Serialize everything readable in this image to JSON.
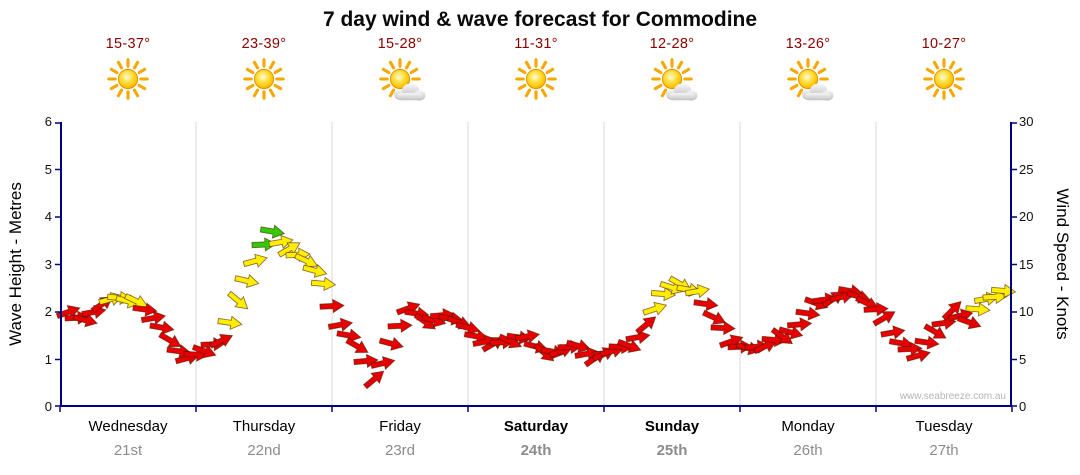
{
  "title": "7 day wind & wave forecast for Commodine",
  "watermark": "www.seabreeze.com.au",
  "colors": {
    "axis": "#000080",
    "grid": "#d8d8d8",
    "temp_text": "#8b0000",
    "date_text": "#8c8c8c"
  },
  "axes": {
    "left": {
      "label": "Wave Height - Metres",
      "ticks": [
        "0",
        "1",
        "2",
        "3",
        "4",
        "5",
        "6"
      ]
    },
    "right": {
      "label": "Wind Speed - Knots",
      "ticks": [
        "0",
        "5",
        "10",
        "15",
        "20",
        "25",
        "30"
      ]
    }
  },
  "days": [
    {
      "name": "Wednesday",
      "date": "21st",
      "temp": "15-37°",
      "icon": "sunny",
      "bold": false
    },
    {
      "name": "Thursday",
      "date": "22nd",
      "temp": "23-39°",
      "icon": "sunny",
      "bold": false
    },
    {
      "name": "Friday",
      "date": "23rd",
      "temp": "15-28°",
      "icon": "partly-cloudy",
      "bold": false
    },
    {
      "name": "Saturday",
      "date": "24th",
      "temp": "11-31°",
      "icon": "sunny",
      "bold": true
    },
    {
      "name": "Sunday",
      "date": "25th",
      "temp": "12-28°",
      "icon": "partly-cloudy",
      "bold": true
    },
    {
      "name": "Monday",
      "date": "26th",
      "temp": "13-26°",
      "icon": "partly-cloudy",
      "bold": false
    },
    {
      "name": "Tuesday",
      "date": "27th",
      "temp": "10-27°",
      "icon": "sunny",
      "bold": false
    }
  ],
  "chart_data": {
    "type": "wind-arrows-time-series",
    "title": "7 day wind & wave forecast for Commodine",
    "points_per_day": 8,
    "interval_hours": 3,
    "categories": [
      "Wednesday 21st",
      "Thursday 22nd",
      "Friday 23rd",
      "Saturday 24th",
      "Sunday 25th",
      "Monday 26th",
      "Tuesday 27th"
    ],
    "y_axis_left": {
      "label": "Wave Height - Metres",
      "range": [
        0,
        6
      ]
    },
    "y_axis_right": {
      "label": "Wind Speed - Knots",
      "range": [
        0,
        30
      ]
    },
    "knots": [
      10,
      9.5,
      10.5,
      11.5,
      11.5,
      9,
      7,
      5.5,
      5.5,
      7,
      11.5,
      15,
      18.5,
      17,
      15,
      13,
      9,
      6,
      3,
      7,
      10,
      9,
      10,
      8.5,
      7.5,
      7,
      6.5,
      7.5,
      6,
      5.5,
      6.5,
      5.5,
      5.5,
      6.5,
      9,
      11.5,
      13,
      12.5,
      9,
      7,
      6.5,
      6,
      7.5,
      9,
      10.5,
      11.5,
      12.5,
      10.5,
      9.5,
      7,
      5,
      8,
      10.5,
      8.5,
      11.5,
      12.5
    ],
    "directions_deg": [
      -20,
      15,
      -35,
      5,
      25,
      -10,
      30,
      -15,
      20,
      -25,
      40,
      -15,
      10,
      -30,
      25,
      5,
      -10,
      30,
      -40,
      15,
      -20,
      35,
      -5,
      20,
      10,
      -30,
      25,
      -10,
      40,
      -20,
      15,
      -35,
      -15,
      20,
      -40,
      5,
      30,
      -10,
      25,
      -20,
      15,
      -25,
      35,
      -5,
      20,
      -35,
      10,
      25,
      -30,
      10,
      -15,
      30,
      -45,
      20,
      -10,
      5
    ],
    "colors": "rrryyrrrrryygyyyrrrrrrrrrrrrrrrrrrryyyrrrrrrrrrrrrrrrryy",
    "color_key": {
      "r": "#e60000",
      "y": "#ffee00",
      "g": "#33cc00"
    }
  }
}
